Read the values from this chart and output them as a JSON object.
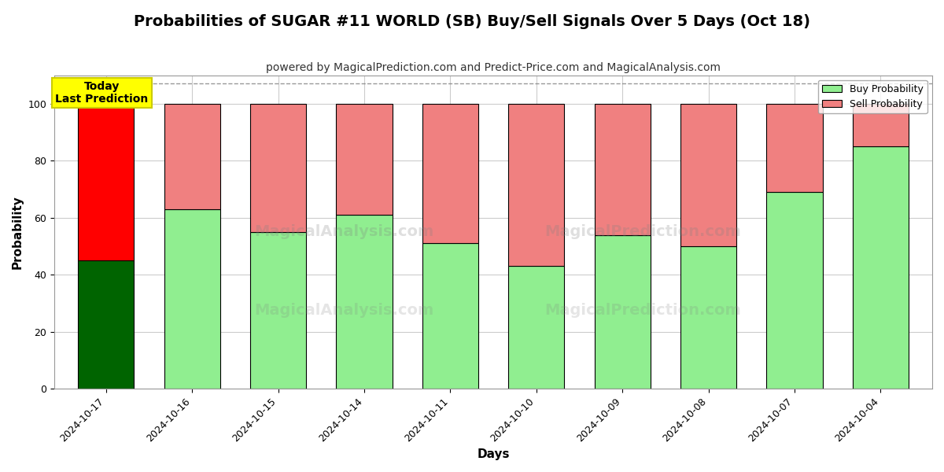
{
  "title": "Probabilities of SUGAR #11 WORLD (SB) Buy/Sell Signals Over 5 Days (Oct 18)",
  "subtitle": "powered by MagicalPrediction.com and Predict-Price.com and MagicalAnalysis.com",
  "xlabel": "Days",
  "ylabel": "Probability",
  "watermark_lines": [
    "MagicalAnalysis.com",
    "MagicalPrediction.com"
  ],
  "categories": [
    "2024-10-17",
    "2024-10-16",
    "2024-10-15",
    "2024-10-14",
    "2024-10-11",
    "2024-10-10",
    "2024-10-09",
    "2024-10-08",
    "2024-10-07",
    "2024-10-04"
  ],
  "buy_values": [
    45,
    63,
    55,
    61,
    51,
    43,
    54,
    50,
    69,
    85
  ],
  "sell_values": [
    55,
    37,
    45,
    39,
    49,
    57,
    46,
    50,
    31,
    15
  ],
  "today_idx": 0,
  "buy_color_today": "#006400",
  "sell_color_today": "#ff0000",
  "buy_color_normal": "#90ee90",
  "sell_color_normal": "#f08080",
  "bar_edge_color": "#000000",
  "bar_linewidth": 0.8,
  "today_annotation_text": "Today\nLast Prediction",
  "today_box_color": "#ffff00",
  "today_box_edge": "#cccc00",
  "legend_buy": "Buy Probability",
  "legend_sell": "Sell Probability",
  "ylim": [
    0,
    110
  ],
  "yticks": [
    0,
    20,
    40,
    60,
    80,
    100
  ],
  "dashed_line_y": 107,
  "grid_color": "#cccccc",
  "background_color": "#ffffff",
  "fig_width": 12.0,
  "fig_height": 6.0,
  "title_fontsize": 14,
  "subtitle_fontsize": 10,
  "axis_label_fontsize": 11,
  "tick_fontsize": 9
}
